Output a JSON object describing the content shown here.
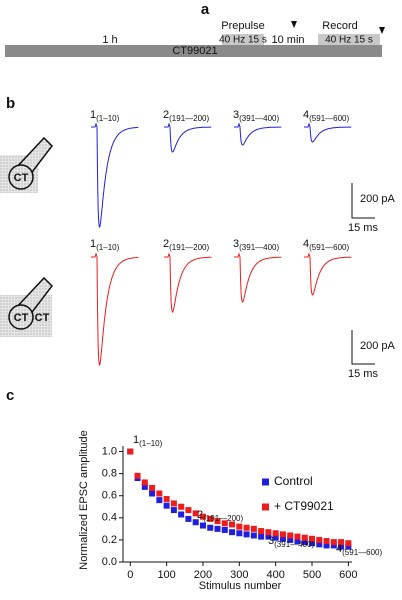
{
  "panel_a": {
    "label": "a",
    "duration": "1 h",
    "drug": "CT99021",
    "prepulse": "Prepulse",
    "prepulse_stim": "40 Hz 15 s",
    "interval": "10 min",
    "record": "Record",
    "record_stim": "40 Hz 15 s"
  },
  "panel_b": {
    "label": "b",
    "cell": "CT",
    "trace_labels": [
      {
        "text": "1",
        "sub": "(1–10)"
      },
      {
        "text": "2",
        "sub": "(191—200)"
      },
      {
        "text": "3",
        "sub": "(391—400)"
      },
      {
        "text": "4",
        "sub": "(591—600)"
      }
    ],
    "scale_current": "200 pA",
    "scale_time": "15 ms"
  },
  "chart_data": {
    "type": "scatter",
    "label": "c",
    "x_label": "Stimulus number",
    "y_label": "Normalized EPSC amplitude",
    "x": [
      0,
      20,
      40,
      60,
      80,
      100,
      120,
      140,
      160,
      180,
      200,
      220,
      240,
      260,
      280,
      300,
      320,
      340,
      360,
      380,
      400,
      420,
      440,
      460,
      480,
      500,
      520,
      540,
      560,
      580,
      600
    ],
    "series": [
      {
        "name": "Control",
        "color": "#1f1fe0",
        "values": [
          1.0,
          0.76,
          0.68,
          0.62,
          0.56,
          0.51,
          0.47,
          0.43,
          0.39,
          0.36,
          0.33,
          0.31,
          0.3,
          0.29,
          0.27,
          0.26,
          0.25,
          0.24,
          0.23,
          0.23,
          0.22,
          0.21,
          0.2,
          0.19,
          0.18,
          0.17,
          0.16,
          0.15,
          0.15,
          0.14,
          0.14
        ]
      },
      {
        "name": "+ CT99021",
        "color": "#ee1c1c",
        "values": [
          1.0,
          0.78,
          0.72,
          0.67,
          0.62,
          0.57,
          0.53,
          0.5,
          0.47,
          0.44,
          0.41,
          0.39,
          0.37,
          0.35,
          0.34,
          0.32,
          0.31,
          0.3,
          0.28,
          0.27,
          0.26,
          0.25,
          0.24,
          0.23,
          0.22,
          0.21,
          0.2,
          0.19,
          0.18,
          0.18,
          0.17
        ]
      }
    ],
    "annotations": [
      {
        "text": "1",
        "sub": "(1–10)"
      },
      {
        "text": "2",
        "sub": "(191—200)"
      },
      {
        "text": "3",
        "sub": "(391—400)"
      },
      {
        "text": "4",
        "sub": "(591—600)"
      }
    ],
    "xlim": [
      -20,
      610
    ],
    "ylim": [
      0,
      1.05
    ],
    "xticks": [
      0,
      100,
      200,
      300,
      400,
      500,
      600
    ],
    "yticks": [
      {
        "value": 0,
        "label": "0.0"
      },
      0.2,
      0.4,
      0.6,
      0.8,
      {
        "value": 1,
        "label": "1.0"
      }
    ]
  }
}
